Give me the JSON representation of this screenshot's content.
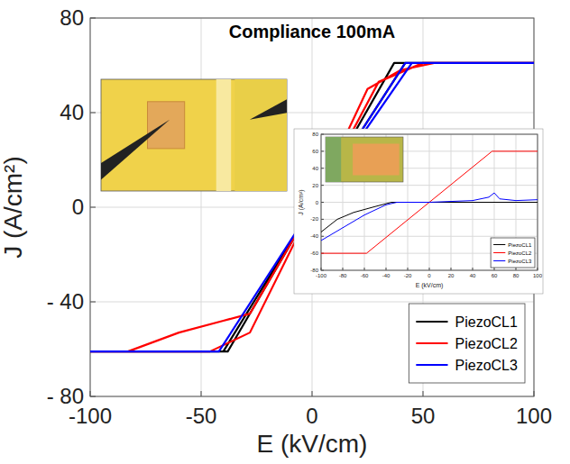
{
  "chart_data": [
    {
      "type": "line",
      "title": "Compliance 100mA",
      "x_label": "E (kV/cm)",
      "y_label": "J (A/cm²)",
      "xlim": [
        -100,
        100
      ],
      "xticks": [
        -100,
        -50,
        0,
        50,
        100
      ],
      "ylim": [
        -80,
        80
      ],
      "yticks": [
        {
          "value": -80,
          "label": "- 80"
        },
        {
          "value": -40,
          "label": "- 40"
        },
        0,
        40,
        80
      ],
      "grid": true,
      "legend": "bottom-right",
      "series": [
        {
          "name": "PiezoCL1",
          "color": "#000000",
          "x": [
            -100,
            -38,
            0,
            37,
            100,
            42,
            0,
            -40,
            -100
          ],
          "values": [
            -61,
            -61,
            0,
            61,
            61,
            61,
            0,
            -61,
            -61
          ]
        },
        {
          "name": "PiezoCL2",
          "color": "#ff0000",
          "x": [
            -100,
            -83,
            -60,
            -40,
            -28,
            0,
            25,
            40,
            55,
            100,
            50,
            30,
            0,
            -28,
            -46,
            -100
          ],
          "values": [
            -61,
            -61,
            -53,
            -48,
            -45,
            0,
            50,
            58,
            61,
            61,
            61,
            53,
            0,
            -53,
            -61,
            -61
          ]
        },
        {
          "name": "PiezoCL3",
          "color": "#0000ff",
          "x": [
            -100,
            -42,
            0,
            42,
            100,
            45,
            0,
            -42,
            -100
          ],
          "values": [
            -61,
            -61,
            0,
            61,
            61,
            61,
            0,
            -61,
            -61
          ]
        }
      ]
    },
    {
      "type": "line",
      "x_label": "E (kV/cm)",
      "y_label": "J (A/cm²)",
      "xlim": [
        -100,
        100
      ],
      "xticks": [
        -100,
        -80,
        -60,
        -40,
        -20,
        0,
        20,
        40,
        60,
        80,
        100
      ],
      "ylim": [
        -80,
        80
      ],
      "yticks": [
        -80,
        -60,
        -40,
        -20,
        0,
        20,
        40,
        60,
        80
      ],
      "grid": true,
      "legend": "bottom-right",
      "series": [
        {
          "name": "PiezoCL1",
          "color": "#000000",
          "x": [
            -100,
            -85,
            -70,
            -50,
            -35,
            0,
            50,
            100
          ],
          "values": [
            -35,
            -20,
            -12,
            -5,
            0,
            0,
            0,
            0
          ]
        },
        {
          "name": "PiezoCL2",
          "color": "#ff0000",
          "x": [
            -100,
            -58,
            58,
            100
          ],
          "values": [
            -60,
            -60,
            60,
            60
          ]
        },
        {
          "name": "PiezoCL3",
          "color": "#0000ff",
          "x": [
            -100,
            -80,
            -60,
            -40,
            -30,
            0,
            40,
            55,
            60,
            65,
            80,
            100
          ],
          "values": [
            -45,
            -30,
            -15,
            -3,
            0,
            0,
            2,
            6,
            11,
            4,
            2,
            3
          ]
        }
      ]
    }
  ]
}
